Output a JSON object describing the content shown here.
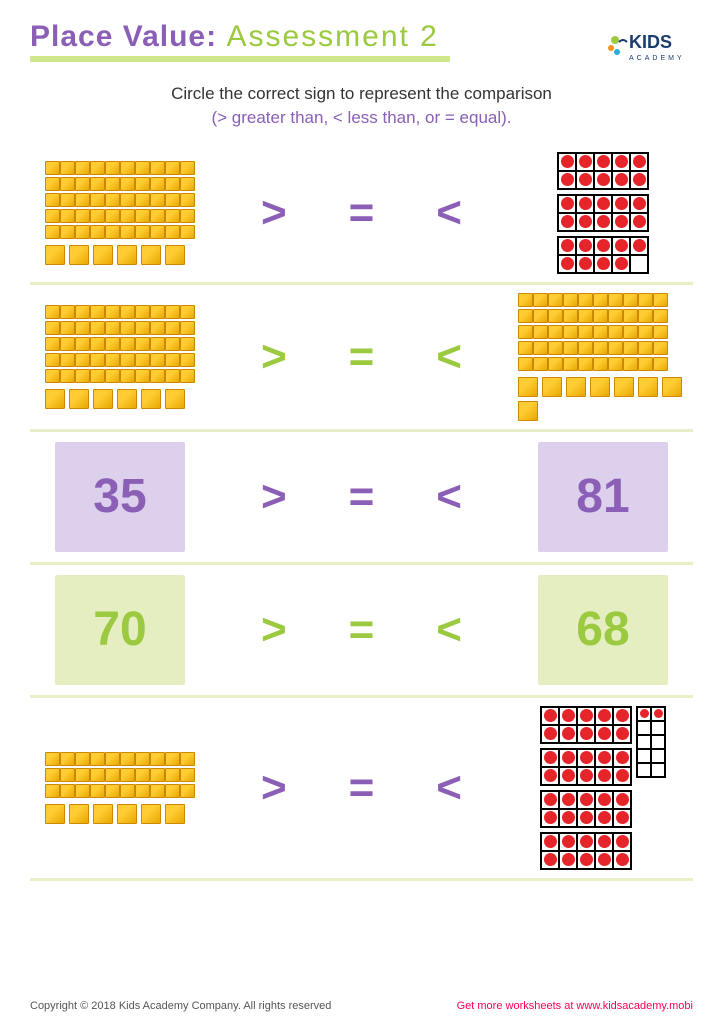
{
  "header": {
    "title_purple": "Place Value:",
    "title_green": "Assessment 2",
    "logo_text_kids": "KIDS",
    "logo_text_academy": "ACADEMY"
  },
  "instructions": {
    "line1": "Circle the correct sign to represent the comparison",
    "line2": "(> greater than, < less than, or = equal)."
  },
  "signs": {
    "gt": ">",
    "eq": "=",
    "lt": "<"
  },
  "rows": [
    {
      "left_type": "blocks",
      "left_tens": 5,
      "left_ones": 6,
      "right_type": "frames",
      "right_tens": 2,
      "right_ones": 9,
      "sign_colors": [
        "purple",
        "purple",
        "purple"
      ]
    },
    {
      "left_type": "blocks",
      "left_tens": 5,
      "left_ones": 6,
      "right_type": "blocks",
      "right_tens": 5,
      "right_ones": 8,
      "sign_colors": [
        "green",
        "green",
        "green"
      ]
    },
    {
      "left_type": "number",
      "left_value": "35",
      "left_box": "lavender",
      "right_type": "number",
      "right_value": "81",
      "right_box": "lavender",
      "sign_colors": [
        "purple",
        "purple",
        "purple"
      ]
    },
    {
      "left_type": "number",
      "left_value": "70",
      "left_box": "lime",
      "right_type": "number",
      "right_value": "68",
      "right_box": "lime",
      "sign_colors": [
        "green",
        "green",
        "green"
      ]
    },
    {
      "left_type": "blocks",
      "left_tens": 3,
      "left_ones": 6,
      "right_type": "frames-complex",
      "right_tens": 4,
      "right_ones": 2,
      "sign_colors": [
        "purple",
        "purple",
        "purple"
      ]
    }
  ],
  "colors": {
    "purple": "#8a5fb5",
    "green": "#9bc940",
    "lavender_bg": "#ddd0ed",
    "lime_bg": "#e5eec0",
    "divider": "#e8efc7",
    "underline": "#cfe68a",
    "cube_light": "#ffcc33",
    "cube_dark": "#e6a800",
    "cube_border": "#cc8800",
    "dot": "#e6252a",
    "link": "#f05"
  },
  "footer": {
    "copyright": "Copyright © 2018 Kids Academy Company. All rights reserved",
    "more": "Get more worksheets at www.kidsacademy.mobi"
  }
}
